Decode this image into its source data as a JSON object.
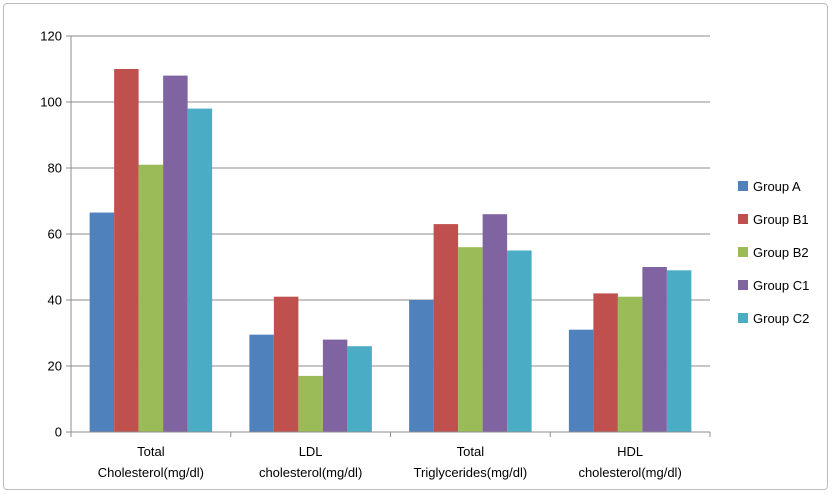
{
  "chart_data": {
    "type": "bar",
    "title": "",
    "xlabel": "",
    "ylabel": "",
    "ylim": [
      0,
      120
    ],
    "yticks": [
      0,
      20,
      40,
      60,
      80,
      100,
      120
    ],
    "grid": true,
    "legend_position": "right",
    "categories": [
      [
        "Total",
        "Cholesterol(mg/dl)"
      ],
      [
        "LDL",
        "cholesterol(mg/dl)"
      ],
      [
        "Total",
        "Triglycerides(mg/dl)"
      ],
      [
        "HDL",
        "cholesterol(mg/dl)"
      ]
    ],
    "series": [
      {
        "name": "Group A",
        "color": "#4F81BD",
        "values": [
          66.5,
          29.5,
          40,
          31
        ]
      },
      {
        "name": "Group B1",
        "color": "#C0504D",
        "values": [
          110,
          41,
          63,
          42
        ]
      },
      {
        "name": "Group B2",
        "color": "#9BBB59",
        "values": [
          81,
          17,
          56,
          41
        ]
      },
      {
        "name": "Group C1",
        "color": "#8064A2",
        "values": [
          108,
          28,
          66,
          50
        ]
      },
      {
        "name": "Group C2",
        "color": "#4BACC6",
        "values": [
          98,
          26,
          55,
          49
        ]
      }
    ]
  }
}
